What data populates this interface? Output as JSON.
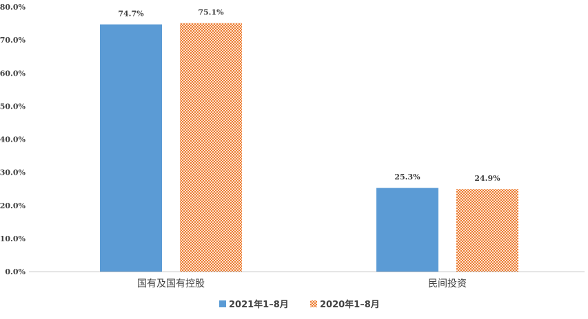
{
  "chart_data": {
    "type": "bar",
    "categories": [
      "国有及国有控股",
      "民间投资"
    ],
    "series": [
      {
        "name": "2021年1–8月",
        "values": [
          74.7,
          25.3
        ],
        "color": "#5b9bd5",
        "pattern": "solid"
      },
      {
        "name": "2020年1–8月",
        "values": [
          75.1,
          24.9
        ],
        "color": "#ed7d31",
        "pattern": "checker"
      }
    ],
    "data_labels": [
      [
        "74.7%",
        "25.3%"
      ],
      [
        "75.1%",
        "24.9%"
      ]
    ],
    "yticks": [
      "0.0%",
      "10.0%",
      "20.0%",
      "30.0%",
      "40.0%",
      "50.0%",
      "60.0%",
      "70.0%",
      "80.0%"
    ],
    "ylim": [
      0,
      80
    ],
    "grid": false,
    "legend_position": "bottom"
  }
}
